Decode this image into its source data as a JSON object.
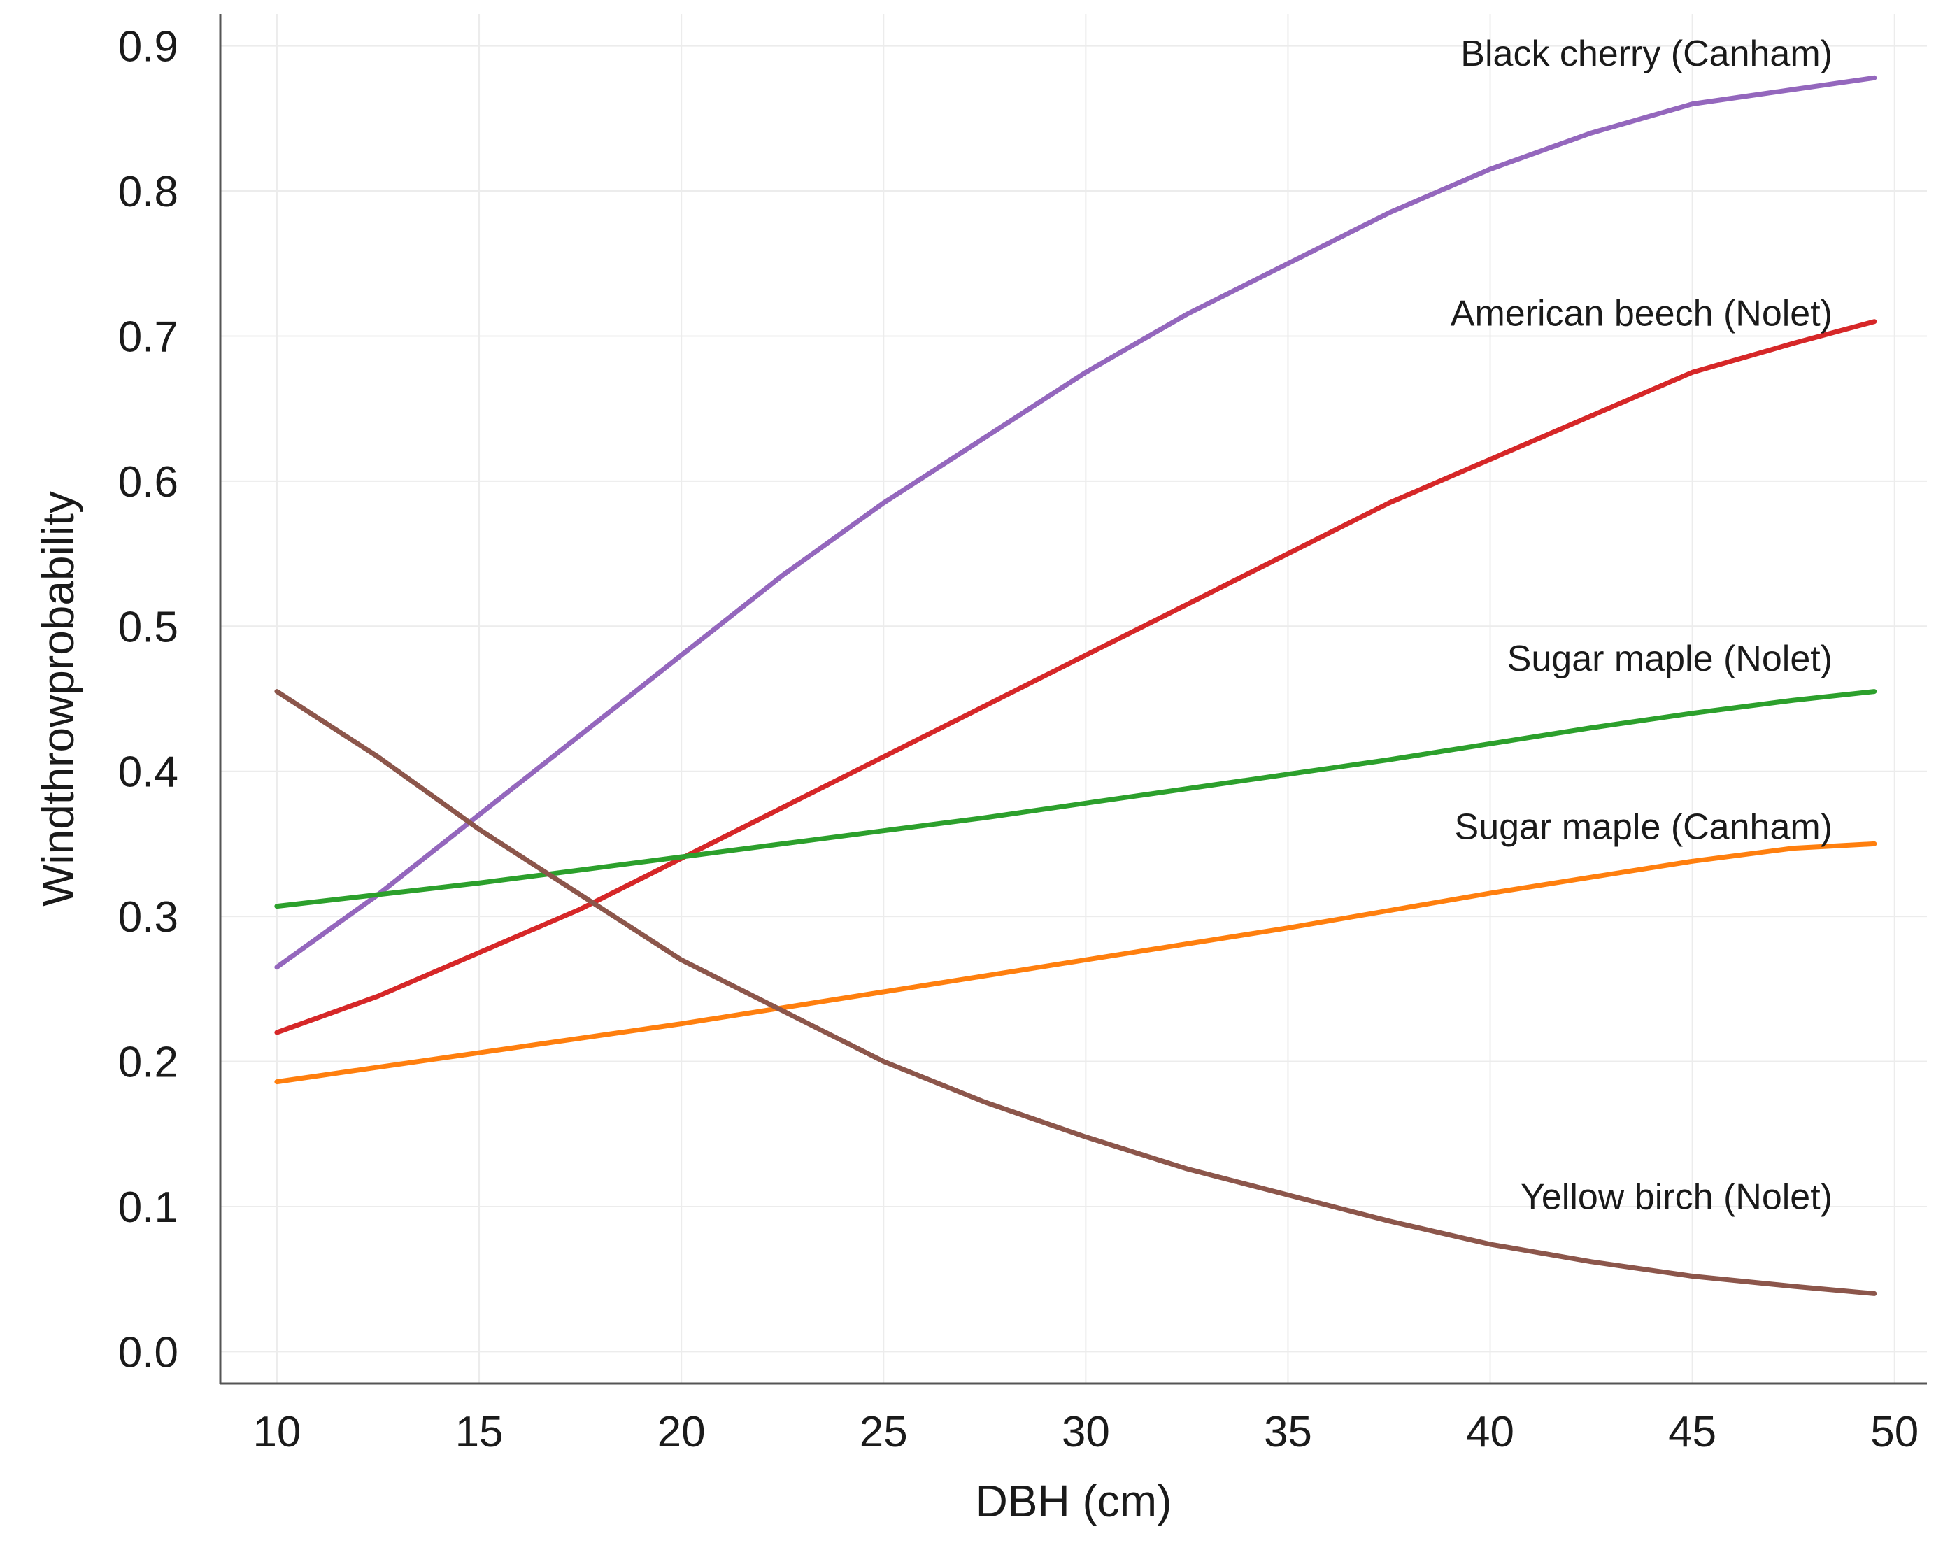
{
  "chart_data": {
    "type": "line",
    "title": "",
    "xlabel": "DBH (cm)",
    "ylabel": "Windthrowprobability",
    "xlim": [
      8.6,
      50.8
    ],
    "ylim": [
      -0.022,
      0.922
    ],
    "xticks": [
      10,
      15,
      20,
      25,
      30,
      35,
      40,
      45,
      50
    ],
    "xtick_labels": [
      "10",
      "15",
      "20",
      "25",
      "30",
      "35",
      "40",
      "45",
      "50"
    ],
    "yticks": [
      0.0,
      0.1,
      0.2,
      0.3,
      0.4,
      0.5,
      0.6,
      0.7,
      0.8,
      0.9
    ],
    "ytick_labels": [
      "0.0",
      "0.1",
      "0.2",
      "0.3",
      "0.4",
      "0.5",
      "0.6",
      "0.7",
      "0.8",
      "0.9"
    ],
    "grid": true,
    "legend": "inline labels at right end of each series",
    "x": [
      10,
      12.5,
      15,
      17.5,
      20,
      22.5,
      25,
      27.5,
      30,
      32.5,
      35,
      37.5,
      40,
      42.5,
      45,
      47.5,
      49.5
    ],
    "series": [
      {
        "name": "Black cherry (Canham)",
        "color": "#9467bd",
        "values": [
          0.265,
          0.315,
          0.37,
          0.425,
          0.48,
          0.535,
          0.585,
          0.63,
          0.675,
          0.715,
          0.75,
          0.785,
          0.815,
          0.84,
          0.86,
          0.87,
          0.878
        ]
      },
      {
        "name": "American beech (Nolet)",
        "color": "#d62728",
        "values": [
          0.22,
          0.245,
          0.275,
          0.305,
          0.34,
          0.375,
          0.41,
          0.445,
          0.48,
          0.515,
          0.55,
          0.585,
          0.615,
          0.645,
          0.675,
          0.695,
          0.71
        ]
      },
      {
        "name": "Sugar maple  (Nolet)",
        "color": "#2ca02c",
        "values": [
          0.307,
          0.315,
          0.323,
          0.332,
          0.341,
          0.35,
          0.359,
          0.368,
          0.378,
          0.388,
          0.398,
          0.408,
          0.419,
          0.43,
          0.44,
          0.449,
          0.455
        ]
      },
      {
        "name": "Sugar maple (Canham)",
        "color": "#ff7f0e",
        "values": [
          0.186,
          0.196,
          0.206,
          0.216,
          0.226,
          0.237,
          0.248,
          0.259,
          0.27,
          0.281,
          0.292,
          0.304,
          0.316,
          0.327,
          0.338,
          0.347,
          0.35
        ]
      },
      {
        "name": "Yellow birch (Nolet)",
        "color": "#8c564b",
        "values": [
          0.455,
          0.41,
          0.36,
          0.315,
          0.27,
          0.235,
          0.2,
          0.172,
          0.148,
          0.126,
          0.108,
          0.09,
          0.074,
          0.062,
          0.052,
          0.045,
          0.04
        ]
      }
    ]
  }
}
